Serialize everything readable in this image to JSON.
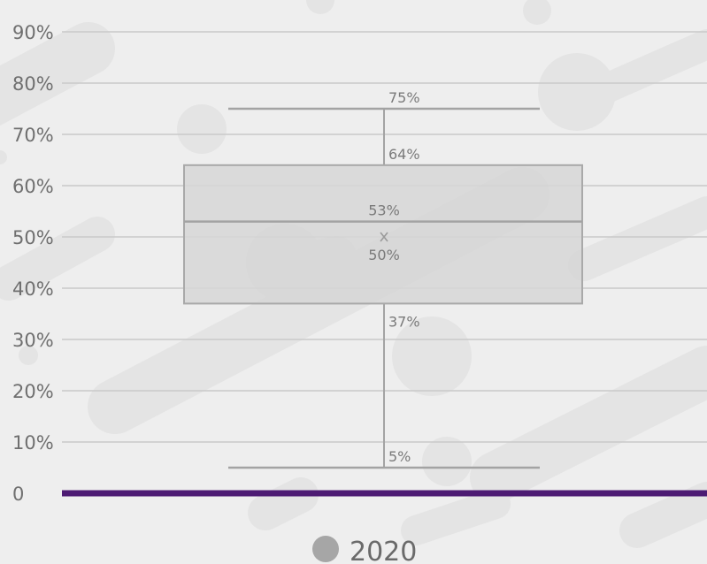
{
  "chart_data": {
    "type": "box",
    "ylim": [
      0,
      90
    ],
    "yticks": [
      "0",
      "10%",
      "20%",
      "30%",
      "40%",
      "50%",
      "60%",
      "70%",
      "80%",
      "90%"
    ],
    "series": [
      {
        "name": "2020",
        "min": 5,
        "q1": 37,
        "median": 53,
        "mean": 50,
        "q3": 64,
        "max": 75,
        "labels": {
          "max": "75%",
          "q3": "64%",
          "median": "53%",
          "mean": "50%",
          "q1": "37%",
          "min": "5%"
        }
      }
    ],
    "legend": {
      "position": "bottom",
      "label": "2020"
    },
    "grid": true,
    "colors": {
      "box_fill": "#d6d6d6",
      "box_stroke": "#a9a9a9",
      "whisker": "#a3a3a3",
      "baseline": "#4d1b73",
      "grid": "#c9c9c9",
      "legend_marker": "#a6a6a6"
    }
  }
}
